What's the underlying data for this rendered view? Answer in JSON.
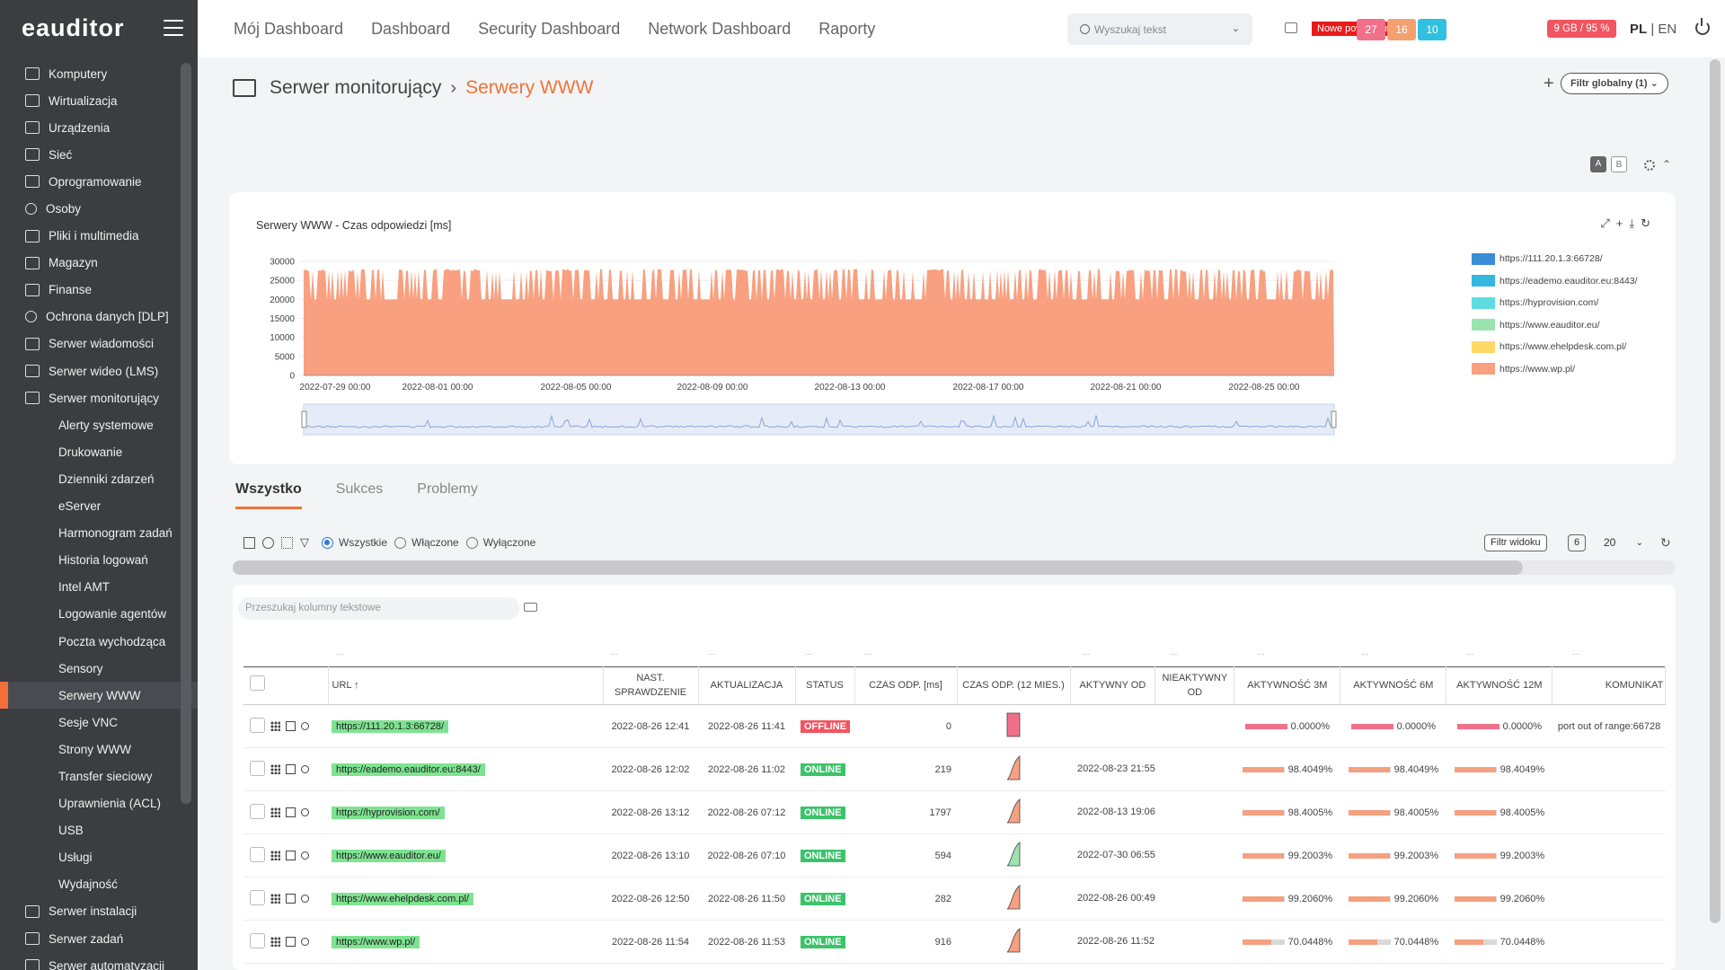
{
  "app": {
    "logo": "eauditor"
  },
  "sidebar": {
    "items": [
      {
        "label": "Komputery",
        "icon": "monitor-icon",
        "level": "top"
      },
      {
        "label": "Wirtualizacja",
        "icon": "server-stack-icon",
        "level": "top"
      },
      {
        "label": "Urządzenia",
        "icon": "devices-icon",
        "level": "top"
      },
      {
        "label": "Sieć",
        "icon": "network-icon",
        "level": "top"
      },
      {
        "label": "Oprogramowanie",
        "icon": "software-icon",
        "level": "top"
      },
      {
        "label": "Osoby",
        "icon": "people-icon",
        "level": "top"
      },
      {
        "label": "Pliki i multimedia",
        "icon": "file-icon",
        "level": "top"
      },
      {
        "label": "Magazyn",
        "icon": "warehouse-icon",
        "level": "top"
      },
      {
        "label": "Finanse",
        "icon": "wallet-icon",
        "level": "top"
      },
      {
        "label": "Ochrona danych [DLP]",
        "icon": "shield-icon",
        "level": "top"
      },
      {
        "label": "Serwer wiadomości",
        "icon": "mail-icon",
        "level": "top"
      },
      {
        "label": "Serwer wideo (LMS)",
        "icon": "video-icon",
        "level": "top"
      },
      {
        "label": "Serwer monitorujący",
        "icon": "monitoring-icon",
        "level": "top"
      },
      {
        "label": "Alerty systemowe",
        "level": "sub"
      },
      {
        "label": "Drukowanie",
        "level": "sub"
      },
      {
        "label": "Dzienniki zdarzeń",
        "level": "sub"
      },
      {
        "label": "eServer",
        "level": "sub"
      },
      {
        "label": "Harmonogram zadań",
        "level": "sub"
      },
      {
        "label": "Historia logowań",
        "level": "sub"
      },
      {
        "label": "Intel AMT",
        "level": "sub"
      },
      {
        "label": "Logowanie agentów",
        "level": "sub"
      },
      {
        "label": "Poczta wychodząca",
        "level": "sub"
      },
      {
        "label": "Sensory",
        "level": "sub"
      },
      {
        "label": "Serwery WWW",
        "level": "sub",
        "active": true
      },
      {
        "label": "Sesje VNC",
        "level": "sub"
      },
      {
        "label": "Strony WWW",
        "level": "sub"
      },
      {
        "label": "Transfer sieciowy",
        "level": "sub"
      },
      {
        "label": "Uprawnienia (ACL)",
        "level": "sub"
      },
      {
        "label": "USB",
        "level": "sub"
      },
      {
        "label": "Usługi",
        "level": "sub"
      },
      {
        "label": "Wydajność",
        "level": "sub"
      },
      {
        "label": "Serwer instalacji",
        "icon": "install-icon",
        "level": "top"
      },
      {
        "label": "Serwer zadań",
        "icon": "tasks-icon",
        "level": "top"
      },
      {
        "label": "Serwer automatyzacji",
        "icon": "automation-icon",
        "level": "top"
      }
    ]
  },
  "topnav": [
    "Mój Dashboard",
    "Dashboard",
    "Security Dashboard",
    "Network Dashboard",
    "Raporty"
  ],
  "search": {
    "placeholder": "Wyszukaj tekst"
  },
  "notifications": {
    "label": "Nowe powiadom.: 1"
  },
  "counters": [
    {
      "value": "27",
      "color": "#f0708a"
    },
    {
      "value": "16",
      "color": "#f5a070"
    },
    {
      "value": "10",
      "color": "#30c0e0"
    }
  ],
  "memory": {
    "label": "9 GB / 95 %"
  },
  "lang": {
    "active": "PL",
    "sep": " | ",
    "other": "EN"
  },
  "breadcrumb": {
    "parent": "Serwer monitorujący",
    "sep": "›",
    "current": "Serwery WWW"
  },
  "global_filter": {
    "label": "Filtr globalny (1)"
  },
  "ab_toggle": {
    "a": "A",
    "b": "B"
  },
  "chart_data": {
    "type": "area",
    "title": "Serwery WWW - Czas odpowiedzi [ms]",
    "ylim": [
      0,
      30000
    ],
    "yticks": [
      "30000",
      "25000",
      "20000",
      "15000",
      "10000",
      "5000",
      "0"
    ],
    "xticks": [
      "2022-07-29 00:00",
      "2022-08-01 00:00",
      "2022-08-05 00:00",
      "2022-08-09 00:00",
      "2022-08-13 00:00",
      "2022-08-17 00:00",
      "2022-08-21 00:00",
      "2022-08-25 00:00"
    ],
    "baseline": 20000,
    "peak": 28000,
    "series": [
      {
        "name": "https://111.20.1.3:66728/",
        "color": "#3b8ed6"
      },
      {
        "name": "https://eademo.eauditor.eu:8443/",
        "color": "#34b8e0"
      },
      {
        "name": "https://hyprovision.com/",
        "color": "#5edbe0"
      },
      {
        "name": "https://www.eauditor.eu/",
        "color": "#9be4b0"
      },
      {
        "name": "https://www.ehelpdesk.com.pl/",
        "color": "#ffd966"
      },
      {
        "name": "https://www.wp.pl/",
        "color": "#f8a07f"
      }
    ]
  },
  "tabs": [
    "Wszystko",
    "Sukces",
    "Problemy"
  ],
  "radios": [
    "Wszystkie",
    "Włączone",
    "Wyłączone"
  ],
  "view_filter": {
    "label": "Filtr widoku",
    "count": "6"
  },
  "page_size": "20",
  "table_search": {
    "placeholder": "Przeszukaj kolumny tekstowe"
  },
  "columns": [
    "URL ↑",
    "NAST. SPRAWDZENIE",
    "AKTUALIZACJA",
    "STATUS",
    "CZAS ODP. [ms]",
    "CZAS ODP. (12 MIES.)",
    "AKTYWNY OD",
    "NIEAKTYWNY OD",
    "AKTYWNOŚĆ 3M",
    "AKTYWNOŚĆ 6M",
    "AKTYWNOŚĆ 12M",
    "KOMUNIKAT"
  ],
  "rows": [
    {
      "url": "https://111.20.1.3:66728/",
      "next": "2022-08-26 12:41",
      "updated": "2022-08-26 11:41",
      "status": "OFFLINE",
      "status_color": "#f05561",
      "resp": "0",
      "active_since": "",
      "inactive_since": "",
      "a3": "0.0000%",
      "a6": "0.0000%",
      "a12": "0.0000%",
      "act_frac": 1.0,
      "act_color": "#f0708a",
      "msg": "port out of range:66728",
      "spark_color": "#f0708a"
    },
    {
      "url": "https://eademo.eauditor.eu:8443/",
      "next": "2022-08-26 12:02",
      "updated": "2022-08-26 11:02",
      "status": "ONLINE",
      "status_color": "#3cc36a",
      "resp": "219",
      "active_since": "2022-08-23 21:55",
      "inactive_since": "",
      "a3": "98.4049%",
      "a6": "98.4049%",
      "a12": "98.4049%",
      "act_frac": 0.984,
      "act_color": "#f5a07f",
      "msg": "",
      "spark_color": "#f8a07f"
    },
    {
      "url": "https://hyprovision.com/",
      "next": "2022-08-26 13:12",
      "updated": "2022-08-26 07:12",
      "status": "ONLINE",
      "status_color": "#3cc36a",
      "resp": "1797",
      "active_since": "2022-08-13 19:06",
      "inactive_since": "",
      "a3": "98.4005%",
      "a6": "98.4005%",
      "a12": "98.4005%",
      "act_frac": 0.984,
      "act_color": "#f5a07f",
      "msg": "",
      "spark_color": "#f8a07f"
    },
    {
      "url": "https://www.eauditor.eu/",
      "next": "2022-08-26 13:10",
      "updated": "2022-08-26 07:10",
      "status": "ONLINE",
      "status_color": "#3cc36a",
      "resp": "594",
      "active_since": "2022-07-30 06:55",
      "inactive_since": "",
      "a3": "99.2003%",
      "a6": "99.2003%",
      "a12": "99.2003%",
      "act_frac": 0.992,
      "act_color": "#f5a07f",
      "msg": "",
      "spark_color": "#9be4b0"
    },
    {
      "url": "https://www.ehelpdesk.com.pl/",
      "next": "2022-08-26 12:50",
      "updated": "2022-08-26 11:50",
      "status": "ONLINE",
      "status_color": "#3cc36a",
      "resp": "282",
      "active_since": "2022-08-26 00:49",
      "inactive_since": "",
      "a3": "99.2060%",
      "a6": "99.2060%",
      "a12": "99.2060%",
      "act_frac": 0.992,
      "act_color": "#f5a07f",
      "msg": "",
      "spark_color": "#f8a07f"
    },
    {
      "url": "https://www.wp.pl/",
      "next": "2022-08-26 11:54",
      "updated": "2022-08-26 11:53",
      "status": "ONLINE",
      "status_color": "#3cc36a",
      "resp": "916",
      "active_since": "2022-08-26 11:52",
      "inactive_since": "",
      "a3": "70.0448%",
      "a6": "70.0448%",
      "a12": "70.0448%",
      "act_frac": 0.7,
      "act_color": "#f5a07f",
      "msg": "",
      "spark_color": "#f8a07f"
    }
  ]
}
